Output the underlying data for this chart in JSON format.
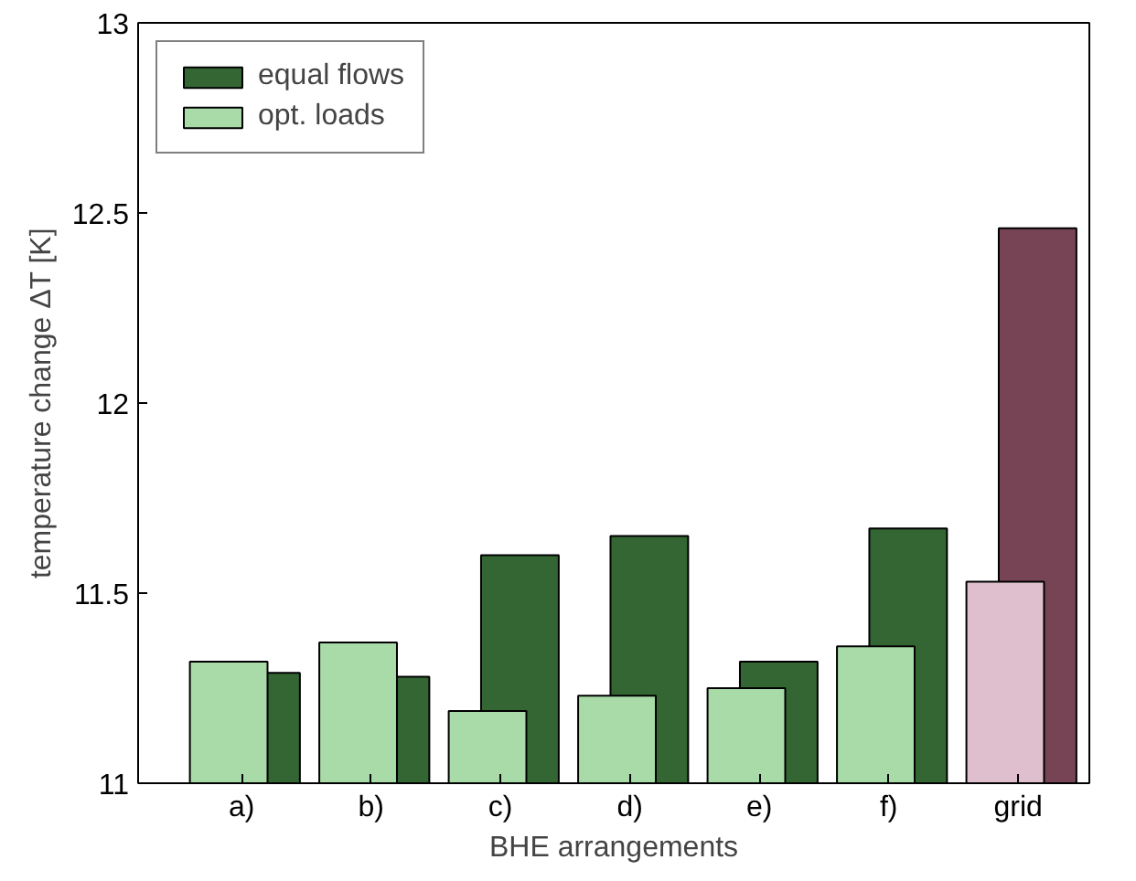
{
  "chart_data": {
    "type": "bar",
    "xlabel": "BHE arrangements",
    "ylabel": "temperature change ΔT [K]",
    "categories": [
      "a)",
      "b)",
      "c)",
      "d)",
      "e)",
      "f)",
      "grid"
    ],
    "series": [
      {
        "name": "equal flows",
        "colors": [
          "#336633",
          "#336633",
          "#336633",
          "#336633",
          "#336633",
          "#336633",
          "#774455"
        ],
        "values": [
          11.29,
          11.28,
          11.6,
          11.65,
          11.32,
          11.67,
          12.46
        ]
      },
      {
        "name": "opt. loads",
        "colors": [
          "#a8dba8",
          "#a8dba8",
          "#a8dba8",
          "#a8dba8",
          "#a8dba8",
          "#a8dba8",
          "#dfbfcd"
        ],
        "values": [
          11.32,
          11.37,
          11.19,
          11.23,
          11.25,
          11.36,
          11.53
        ]
      }
    ],
    "ylim": [
      11,
      13
    ],
    "yticks": [
      11,
      11.5,
      12,
      12.5,
      13
    ],
    "grid": false,
    "legend": "top left"
  }
}
